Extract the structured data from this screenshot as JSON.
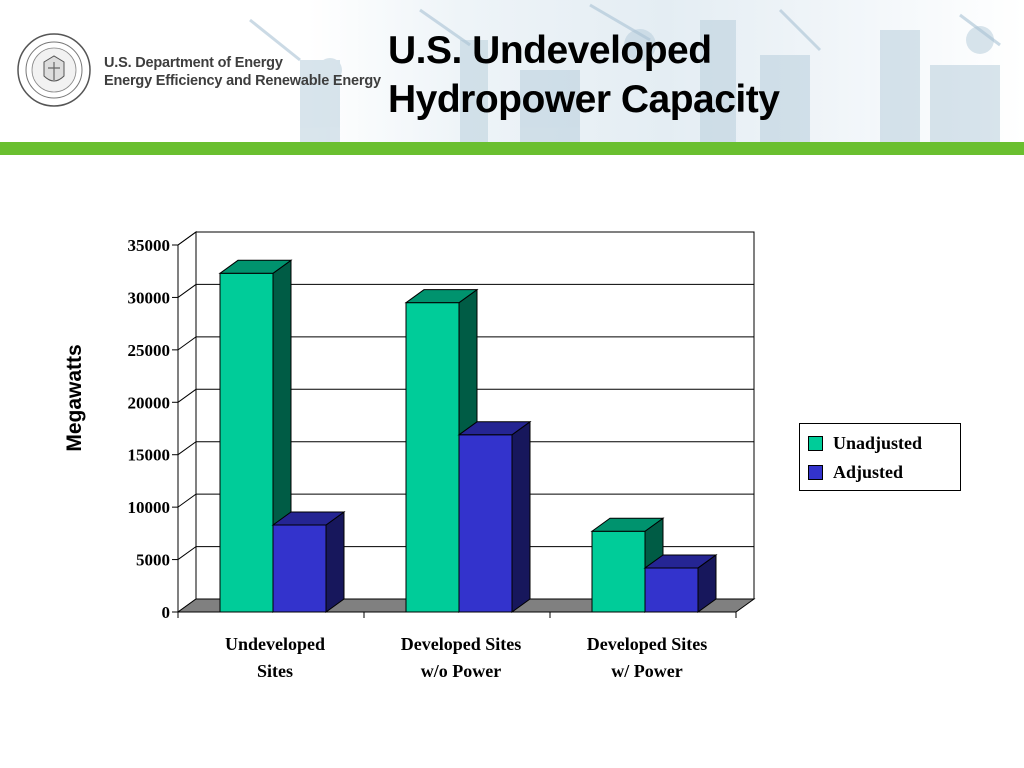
{
  "header": {
    "agency_line1": "U.S. Department of Energy",
    "agency_line2": "Energy Efficiency and Renewable Energy",
    "title_line1": "U.S. Undeveloped",
    "title_line2": "Hydropower Capacity",
    "accent_color": "#6abf2f"
  },
  "chart_data": {
    "type": "bar",
    "style": "3d-clustered-column",
    "categories": [
      "Undeveloped Sites",
      "Developed Sites w/o Power",
      "Developed Sites w/ Power"
    ],
    "category_lines": [
      [
        "Undeveloped",
        "Sites"
      ],
      [
        "Developed Sites",
        "w/o Power"
      ],
      [
        "Developed Sites",
        "w/ Power"
      ]
    ],
    "series": [
      {
        "name": "Unadjusted",
        "values": [
          32300,
          29500,
          7700
        ],
        "color": "#00cc99"
      },
      {
        "name": "Adjusted",
        "values": [
          8300,
          16900,
          4200
        ],
        "color": "#3333cc"
      }
    ],
    "ylabel": "Megawatts",
    "xlabel": "",
    "ylim": [
      0,
      35000
    ],
    "yticks": [
      0,
      5000,
      10000,
      15000,
      20000,
      25000,
      30000,
      35000
    ],
    "grid": true,
    "legend_position": "right"
  }
}
